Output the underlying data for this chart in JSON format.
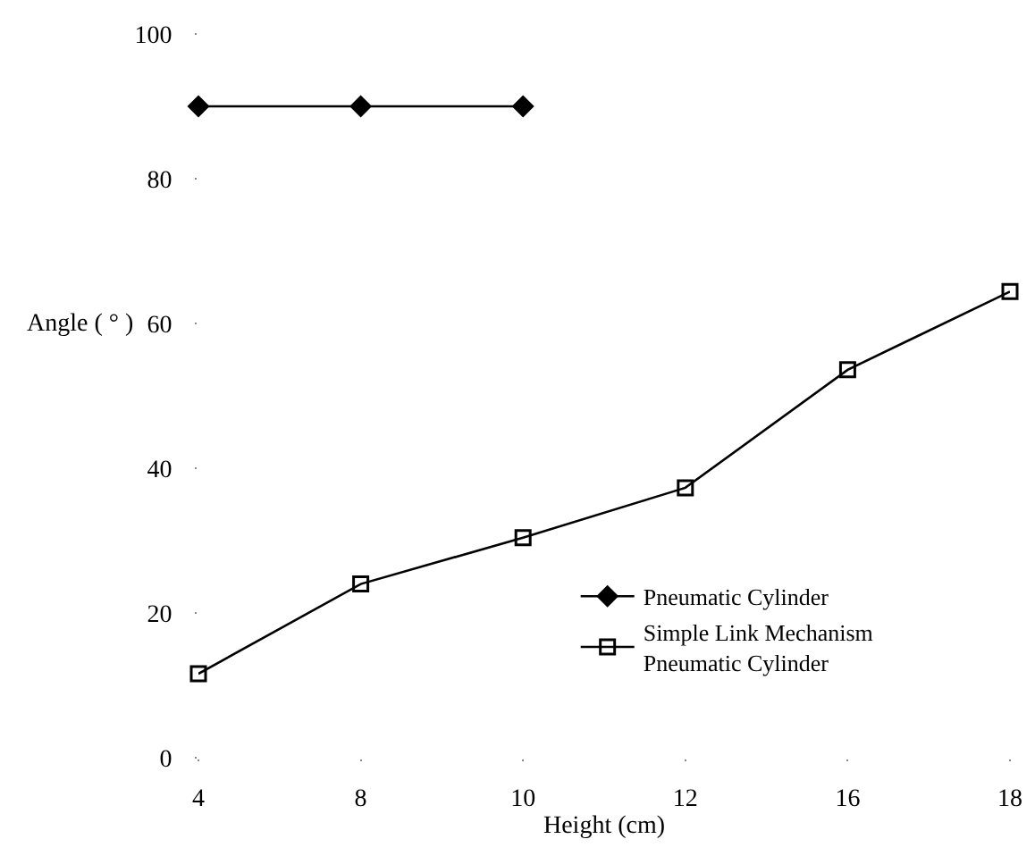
{
  "chart_data": {
    "type": "line",
    "xlabel": "Height (cm)",
    "ylabel": "Angle ( ° )",
    "categories": [
      "4",
      "8",
      "10",
      "12",
      "16",
      "18"
    ],
    "series": [
      {
        "name": "Pneumatic Cylinder",
        "color": "#000000",
        "marker": "diamond",
        "values": [
          90,
          90,
          90,
          null,
          null,
          null
        ]
      },
      {
        "name": "Simple Link Mechanism Pneumatic Cylinder",
        "color": "#000000",
        "marker": "square-open",
        "values": [
          11.6,
          24,
          30.4,
          37.3,
          53.6,
          64.4
        ]
      }
    ],
    "ylim": [
      0,
      100
    ],
    "yticks": [
      0,
      20,
      40,
      60,
      80,
      100
    ],
    "grid": false,
    "legend": "right",
    "line_style": "solid"
  }
}
